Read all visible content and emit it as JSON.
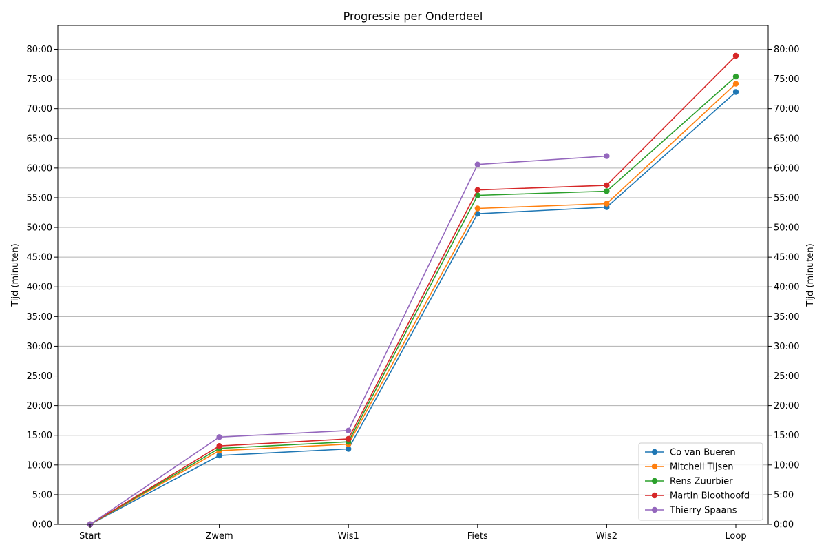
{
  "chart_data": {
    "type": "line",
    "title": "Progressie per Onderdeel",
    "xlabel": "",
    "ylabel": "Tijd (minuten)",
    "ylabel_right": "Tijd (minuten)",
    "categories": [
      "Start",
      "Zwem",
      "Wis1",
      "Fiets",
      "Wis2",
      "Loop"
    ],
    "ylim": [
      0,
      84
    ],
    "yticks": [
      0,
      5,
      10,
      15,
      20,
      25,
      30,
      35,
      40,
      45,
      50,
      55,
      60,
      65,
      70,
      75,
      80
    ],
    "ytick_labels": [
      "0:00",
      "5:00",
      "10:00",
      "15:00",
      "20:00",
      "25:00",
      "30:00",
      "35:00",
      "40:00",
      "45:00",
      "50:00",
      "55:00",
      "60:00",
      "65:00",
      "70:00",
      "75:00",
      "80:00"
    ],
    "grid": "horizontal",
    "legend_position": "bottom-right",
    "markers": true,
    "series": [
      {
        "name": "Co van Bueren",
        "color": "#1f77b4",
        "values": [
          0,
          11.6,
          12.7,
          52.3,
          53.4,
          72.8
        ]
      },
      {
        "name": "Mitchell Tijsen",
        "color": "#ff7f0e",
        "values": [
          0,
          12.4,
          13.5,
          53.2,
          54.0,
          74.2
        ]
      },
      {
        "name": "Rens Zuurbier",
        "color": "#2ca02c",
        "values": [
          0,
          12.8,
          13.9,
          55.4,
          56.1,
          75.4
        ]
      },
      {
        "name": "Martin Bloothoofd",
        "color": "#d62728",
        "values": [
          0,
          13.2,
          14.4,
          56.3,
          57.1,
          78.9
        ]
      },
      {
        "name": "Thierry Spaans",
        "color": "#9467bd",
        "values": [
          0,
          14.7,
          15.8,
          60.6,
          62.0,
          null
        ]
      }
    ]
  }
}
